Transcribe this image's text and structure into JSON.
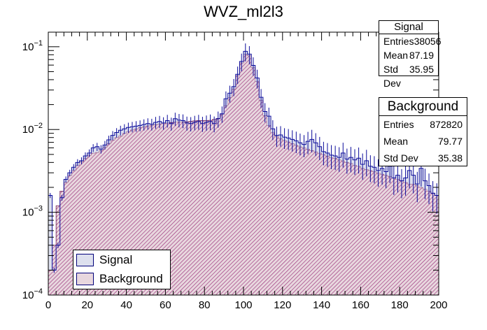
{
  "colors": {
    "signal_line": "#0b0b9a",
    "signal_fill": "#dde0ee",
    "background_fill": "#e8d7de",
    "background_hatch": "#9a2f7a",
    "background_line": "#6d1e57",
    "axis": "#000000"
  },
  "chart_data": {
    "type": "histogram",
    "title": "WVZ_ml2l3",
    "xlabel": "",
    "ylabel": "",
    "xlim": [
      0,
      200
    ],
    "ylim": [
      0.0001,
      0.15
    ],
    "yscale": "log",
    "bin_width": 2,
    "x_ticks": [
      "0",
      "20",
      "40",
      "60",
      "80",
      "100",
      "120",
      "140",
      "160",
      "180",
      "200"
    ],
    "y_ticks": [
      {
        "value": 0.0001,
        "base": "10",
        "exp": "−4"
      },
      {
        "value": 0.001,
        "base": "10",
        "exp": "−3"
      },
      {
        "value": 0.01,
        "base": "10",
        "exp": "−2"
      },
      {
        "value": 0.1,
        "base": "10",
        "exp": "−1"
      }
    ],
    "legend": {
      "position": "bottom-left",
      "entries": [
        "Signal",
        "Background"
      ]
    },
    "series": [
      {
        "name": "Signal",
        "style": "outline-with-errors",
        "values": [
          0.0016,
          0.0002,
          0.0004,
          0.0015,
          0.0025,
          0.003,
          0.0035,
          0.004,
          0.0042,
          0.0048,
          0.0052,
          0.006,
          0.0062,
          0.0058,
          0.0065,
          0.0075,
          0.0085,
          0.0092,
          0.0098,
          0.0102,
          0.0106,
          0.0108,
          0.011,
          0.0112,
          0.0115,
          0.0118,
          0.0116,
          0.0122,
          0.0125,
          0.012,
          0.0128,
          0.0118,
          0.0135,
          0.013,
          0.0128,
          0.012,
          0.0118,
          0.0122,
          0.0125,
          0.0118,
          0.0122,
          0.0125,
          0.0118,
          0.0135,
          0.0155,
          0.0235,
          0.0275,
          0.033,
          0.0465,
          0.0665,
          0.088,
          0.0815,
          0.0595,
          0.042,
          0.0245,
          0.0165,
          0.0145,
          0.0102,
          0.0085,
          0.0086,
          0.0081,
          0.0079,
          0.0076,
          0.0073,
          0.0069,
          0.0066,
          0.0072,
          0.0076,
          0.0069,
          0.0062,
          0.0054,
          0.0052,
          0.0049,
          0.0048,
          0.0046,
          0.0052,
          0.0044,
          0.0046,
          0.0043,
          0.0045,
          0.0038,
          0.0042,
          0.0036,
          0.0035,
          0.0032,
          0.0034,
          0.0031,
          0.0036,
          0.0026,
          0.0028,
          0.0024,
          0.0026,
          0.0032,
          0.0028,
          0.0022,
          0.0034,
          0.0024,
          0.0021,
          0.0017,
          0.0016
        ],
        "stats": {
          "title": "Signal",
          "entries": "38056",
          "mean": "87.19",
          "std_dev": "35.95"
        }
      },
      {
        "name": "Background",
        "style": "hatched-filled",
        "values": [
          0.0002,
          0.0004,
          0.0012,
          0.0018,
          0.0023,
          0.0028,
          0.0032,
          0.0037,
          0.0041,
          0.0045,
          0.0049,
          0.0052,
          0.0053,
          0.0056,
          0.0061,
          0.0068,
          0.0075,
          0.008,
          0.0084,
          0.009,
          0.0095,
          0.0099,
          0.0102,
          0.0106,
          0.0108,
          0.0111,
          0.0113,
          0.0115,
          0.0117,
          0.0119,
          0.012,
          0.0121,
          0.0123,
          0.0124,
          0.0124,
          0.0124,
          0.0126,
          0.0127,
          0.0128,
          0.0128,
          0.0128,
          0.0129,
          0.0132,
          0.0136,
          0.0152,
          0.0195,
          0.0245,
          0.031,
          0.045,
          0.064,
          0.081,
          0.078,
          0.056,
          0.038,
          0.0225,
          0.0148,
          0.0112,
          0.0092,
          0.0083,
          0.0078,
          0.0074,
          0.0071,
          0.0068,
          0.0065,
          0.0062,
          0.006,
          0.0058,
          0.0056,
          0.0054,
          0.0052,
          0.005,
          0.0048,
          0.0046,
          0.0045,
          0.0043,
          0.0042,
          0.004,
          0.0039,
          0.0037,
          0.0036,
          0.0034,
          0.0033,
          0.0032,
          0.0031,
          0.003,
          0.0029,
          0.0028,
          0.0027,
          0.0026,
          0.0025,
          0.0024,
          0.0023,
          0.0022,
          0.0022,
          0.0021,
          0.002,
          0.0019,
          0.0018,
          0.0017,
          0.0016
        ],
        "stats": {
          "title": "Background",
          "entries": "872820",
          "mean": "79.77",
          "std_dev": "35.38"
        }
      }
    ]
  },
  "stats_labels": {
    "entries": "Entries",
    "mean": "Mean",
    "std_dev": "Std Dev"
  }
}
